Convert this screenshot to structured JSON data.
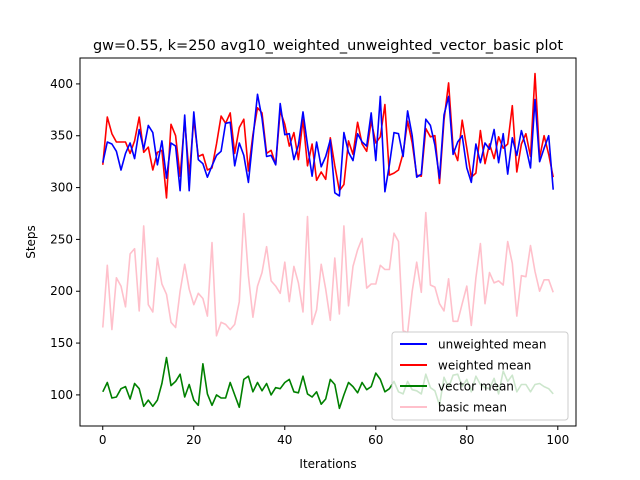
{
  "chart_data": {
    "type": "line",
    "title": "gw=0.55, k=250 avg10_weighted_unweighted_vector_basic plot",
    "xlabel": "Iterations",
    "ylabel": "Steps",
    "xlim": [
      -5,
      104
    ],
    "ylim": [
      70,
      425
    ],
    "xticks": [
      0,
      20,
      40,
      60,
      80,
      100
    ],
    "yticks": [
      100,
      150,
      200,
      250,
      300,
      350,
      400
    ],
    "grid": false,
    "legend_position": "lower-right",
    "series": [
      {
        "name": "unweighted mean",
        "color": "#0000ff",
        "values": [
          324,
          344,
          342,
          335,
          317,
          333,
          343,
          328,
          356,
          337,
          360,
          353,
          322,
          345,
          309,
          343,
          340,
          297,
          370,
          297,
          373,
          327,
          323,
          310,
          321,
          331,
          335,
          362,
          363,
          321,
          343,
          331,
          305,
          347,
          390,
          367,
          330,
          331,
          322,
          381,
          351,
          352,
          327,
          341,
          373,
          341,
          311,
          344,
          320,
          330,
          346,
          295,
          292,
          353,
          334,
          326,
          352,
          344,
          340,
          372,
          326,
          388,
          296,
          322,
          353,
          352,
          330,
          374,
          350,
          310,
          313,
          366,
          360,
          341,
          309,
          370,
          388,
          332,
          344,
          350,
          319,
          305,
          342,
          324,
          343,
          337,
          356,
          324,
          352,
          313,
          348,
          331,
          355,
          339,
          319,
          385,
          325,
          338,
          350,
          298
        ]
      },
      {
        "name": "weighted mean",
        "color": "#ff0000",
        "values": [
          322,
          368,
          352,
          344,
          344,
          344,
          333,
          345,
          368,
          334,
          339,
          317,
          334,
          336,
          290,
          361,
          350,
          311,
          365,
          312,
          366,
          330,
          332,
          317,
          319,
          342,
          369,
          362,
          372,
          333,
          358,
          366,
          316,
          351,
          377,
          372,
          333,
          336,
          322,
          374,
          361,
          340,
          353,
          327,
          366,
          321,
          342,
          307,
          315,
          308,
          348,
          321,
          297,
          303,
          345,
          332,
          363,
          342,
          335,
          364,
          343,
          349,
          380,
          312,
          314,
          317,
          333,
          364,
          343,
          312,
          311,
          357,
          349,
          350,
          304,
          365,
          401,
          338,
          326,
          365,
          338,
          310,
          314,
          355,
          323,
          342,
          328,
          349,
          338,
          342,
          379,
          315,
          342,
          352,
          330,
          410,
          329,
          350,
          332,
          310
        ]
      },
      {
        "name": "vector mean",
        "color": "#008000",
        "values": [
          103,
          112,
          97,
          98,
          106,
          108,
          96,
          111,
          106,
          89,
          95,
          89,
          95,
          111,
          136,
          109,
          113,
          120,
          98,
          110,
          95,
          90,
          130,
          101,
          90,
          100,
          97,
          97,
          112,
          100,
          88,
          115,
          118,
          103,
          112,
          104,
          111,
          100,
          107,
          106,
          112,
          115,
          103,
          102,
          118,
          101,
          98,
          103,
          91,
          96,
          115,
          110,
          87,
          100,
          112,
          108,
          102,
          112,
          105,
          108,
          121,
          115,
          103,
          106,
          113,
          103,
          101,
          113,
          105,
          104,
          101,
          120,
          107,
          104,
          90,
          117,
          107,
          119,
          120,
          108,
          115,
          103,
          118,
          110,
          107,
          106,
          116,
          101,
          123,
          113,
          119,
          103,
          110,
          110,
          103,
          110,
          111,
          108,
          106,
          101
        ]
      },
      {
        "name": "basic mean",
        "color": "#ffc0cb",
        "values": [
          165,
          225,
          163,
          213,
          205,
          185,
          236,
          241,
          181,
          263,
          187,
          180,
          232,
          207,
          197,
          170,
          165,
          200,
          226,
          202,
          187,
          198,
          193,
          176,
          247,
          157,
          170,
          168,
          163,
          168,
          190,
          275,
          215,
          175,
          205,
          218,
          243,
          210,
          205,
          198,
          228,
          190,
          224,
          208,
          180,
          272,
          168,
          182,
          226,
          202,
          172,
          232,
          178,
          263,
          186,
          224,
          240,
          251,
          203,
          207,
          207,
          225,
          221,
          221,
          256,
          248,
          162,
          160,
          200,
          228,
          199,
          276,
          206,
          204,
          188,
          181,
          212,
          171,
          171,
          188,
          205,
          167,
          213,
          246,
          188,
          218,
          208,
          210,
          206,
          248,
          227,
          176,
          215,
          214,
          244,
          219,
          200,
          211,
          211,
          199
        ]
      }
    ]
  }
}
